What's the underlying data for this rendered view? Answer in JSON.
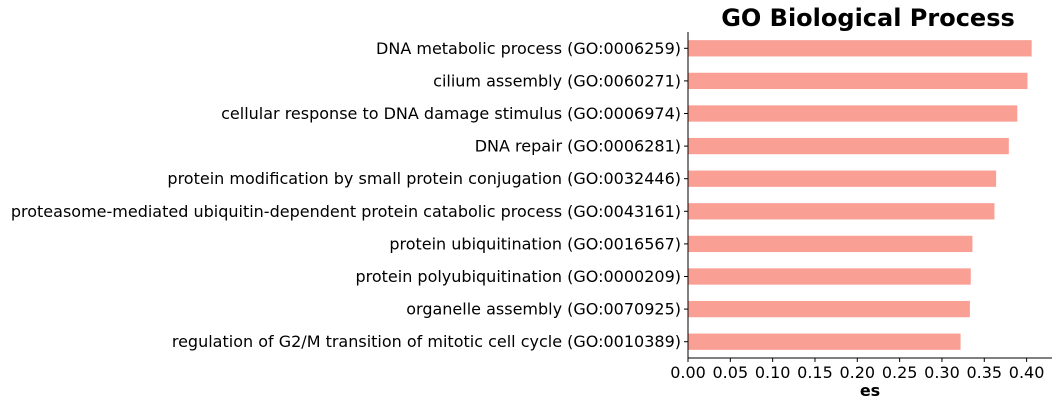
{
  "chart_data": {
    "type": "bar",
    "orientation": "horizontal",
    "title": "GO Biological Process",
    "xlabel": "es",
    "ylabel": "",
    "categories": [
      "DNA metabolic process (GO:0006259)",
      "cilium assembly (GO:0060271)",
      "cellular response to DNA damage stimulus (GO:0006974)",
      "DNA repair (GO:0006281)",
      "protein modification by small protein conjugation (GO:0032446)",
      "proteasome-mediated ubiquitin-dependent protein catabolic process (GO:0043161)",
      "protein ubiquitination (GO:0016567)",
      "protein polyubiquitination (GO:0000209)",
      "organelle assembly (GO:0070925)",
      "regulation of G2/M transition of mitotic cell cycle (GO:0010389)"
    ],
    "values": [
      0.406,
      0.401,
      0.389,
      0.379,
      0.364,
      0.362,
      0.336,
      0.334,
      0.333,
      0.322
    ],
    "xlim": [
      0,
      0.43
    ],
    "xticks": [
      "0.00",
      "0.05",
      "0.10",
      "0.15",
      "0.20",
      "0.25",
      "0.30",
      "0.35",
      "0.40"
    ],
    "grid": false,
    "legend": "none",
    "bar_color": "#fa9f94"
  }
}
